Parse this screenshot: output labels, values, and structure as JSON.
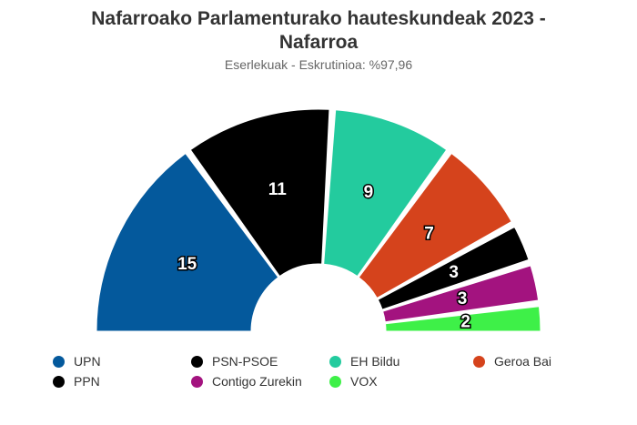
{
  "chart_data": {
    "type": "pie",
    "variant": "parliament-semicircle",
    "title": "Nafarroako Parlamenturako hauteskundeak 2023 - Nafarroa",
    "title_lines": [
      "Nafarroako Parlamenturako hauteskundeak 2023 -",
      "Nafarroa"
    ],
    "subtitle": "Eserlekuak - Eskrutinioa: %97,96",
    "legend_placement": "bottom",
    "series": [
      {
        "name": "UPN",
        "value": 15,
        "color": "#04599c"
      },
      {
        "name": "PSN-PSOE",
        "value": 11,
        "color": "#000000"
      },
      {
        "name": "EH Bildu",
        "value": 9,
        "color": "#23cb9e"
      },
      {
        "name": "Geroa Bai",
        "value": 7,
        "color": "#d5431c"
      },
      {
        "name": "PPN",
        "value": 3,
        "color": "#000000"
      },
      {
        "name": "Contigo Zurekin",
        "value": 3,
        "color": "#a3137f"
      },
      {
        "name": "VOX",
        "value": 2,
        "color": "#3ef048"
      }
    ]
  }
}
